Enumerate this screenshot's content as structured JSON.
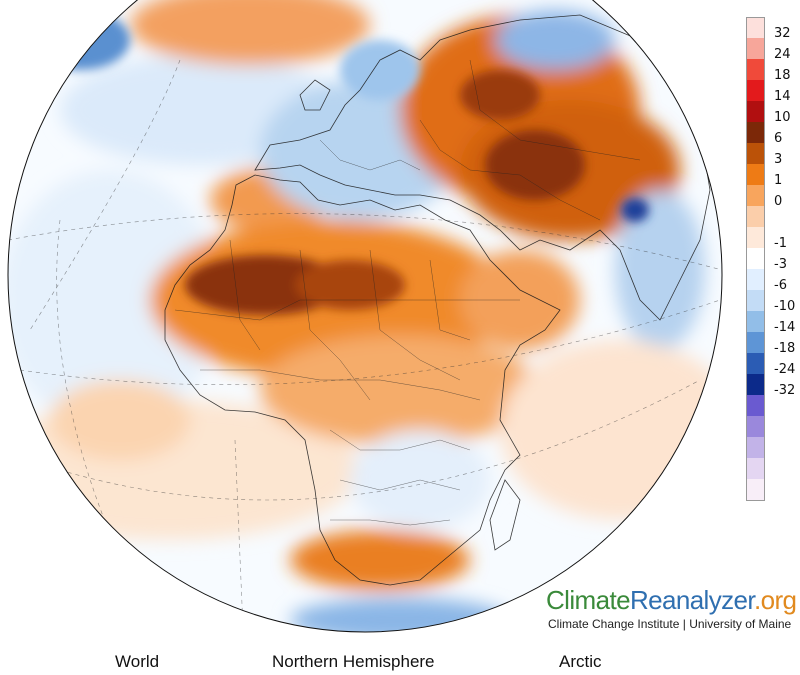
{
  "map": {
    "projection": "orthographic",
    "region": "Africa and Europe",
    "colors": {
      "ocean_base": "#f7fbff",
      "hot_dark": "#7a2a0a",
      "hot": "#e07a1c",
      "warm": "#f6b177",
      "cool": "#b8d4ee",
      "cold": "#5a90d0",
      "cold_dark": "#1c3f9a"
    }
  },
  "legend": {
    "items": [
      {
        "label": "32",
        "color": "#fde0dc"
      },
      {
        "label": "24",
        "color": "#f7a69a"
      },
      {
        "label": "18",
        "color": "#f04a3a"
      },
      {
        "label": "14",
        "color": "#e31a1c"
      },
      {
        "label": "10",
        "color": "#b10f10"
      },
      {
        "label": "6",
        "color": "#7c2808"
      },
      {
        "label": "3",
        "color": "#bb5208"
      },
      {
        "label": "1",
        "color": "#ee7b15"
      },
      {
        "label": "0",
        "color": "#f8a55d"
      },
      {
        "label": "",
        "color": "#fbceaa"
      },
      {
        "label": "-1",
        "color": "#fee9da"
      },
      {
        "label": "-3",
        "color": "#ffffff"
      },
      {
        "label": "-6",
        "color": "#e1efff"
      },
      {
        "label": "-10",
        "color": "#c3dcf6"
      },
      {
        "label": "-14",
        "color": "#92bee8"
      },
      {
        "label": "-18",
        "color": "#5e95d6"
      },
      {
        "label": "-24",
        "color": "#2b5cb4"
      },
      {
        "label": "-32",
        "color": "#0c2a8a"
      },
      {
        "label": "",
        "color": "#6a5ad0"
      },
      {
        "label": "",
        "color": "#9a88dc"
      },
      {
        "label": "",
        "color": "#c2b3e8"
      },
      {
        "label": "",
        "color": "#e4d6f2"
      },
      {
        "label": "",
        "color": "#f8eef8"
      }
    ]
  },
  "branding": {
    "brand_climate": "Climate",
    "brand_reanalyzer": "Reanalyzer",
    "brand_org": ".org",
    "affiliation": "Climate Change Institute | University of Maine"
  },
  "nav": {
    "world": "World",
    "northern_hemisphere": "Northern Hemisphere",
    "arctic": "Arctic"
  }
}
